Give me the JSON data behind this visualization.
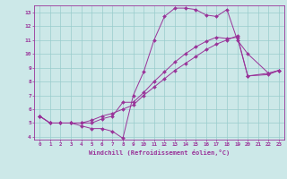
{
  "xlabel": "Windchill (Refroidissement éolien,°C)",
  "bg_color": "#cce8e8",
  "grid_color": "#99cccc",
  "line_color": "#993399",
  "xlim": [
    -0.5,
    23.5
  ],
  "ylim": [
    3.8,
    13.5
  ],
  "xticks": [
    0,
    1,
    2,
    3,
    4,
    5,
    6,
    7,
    8,
    9,
    10,
    11,
    12,
    13,
    14,
    15,
    16,
    17,
    18,
    19,
    20,
    21,
    22,
    23
  ],
  "yticks": [
    4,
    5,
    6,
    7,
    8,
    9,
    10,
    11,
    12,
    13
  ],
  "line1_x": [
    0,
    1,
    2,
    3,
    4,
    5,
    6,
    7,
    8,
    9,
    10,
    11,
    12,
    13,
    14,
    15,
    16,
    17,
    18,
    19,
    20,
    22,
    23
  ],
  "line1_y": [
    5.5,
    5.0,
    5.0,
    5.0,
    4.8,
    4.6,
    4.6,
    4.4,
    3.9,
    7.0,
    8.7,
    11.0,
    12.7,
    13.3,
    13.3,
    13.2,
    12.8,
    12.7,
    13.2,
    11.0,
    10.0,
    8.6,
    8.8
  ],
  "line2_x": [
    0,
    1,
    2,
    3,
    4,
    5,
    6,
    7,
    8,
    9,
    10,
    11,
    12,
    13,
    14,
    15,
    16,
    17,
    18,
    19,
    20,
    22,
    23
  ],
  "line2_y": [
    5.5,
    5.0,
    5.0,
    5.0,
    5.0,
    5.0,
    5.3,
    5.5,
    6.5,
    6.5,
    7.2,
    8.0,
    8.7,
    9.4,
    10.0,
    10.5,
    10.9,
    11.2,
    11.1,
    11.2,
    8.4,
    8.6,
    8.8
  ],
  "line3_x": [
    0,
    1,
    2,
    3,
    4,
    5,
    6,
    7,
    8,
    9,
    10,
    11,
    12,
    13,
    14,
    15,
    16,
    17,
    18,
    19,
    20,
    22,
    23
  ],
  "line3_y": [
    5.5,
    5.0,
    5.0,
    5.0,
    5.0,
    5.2,
    5.5,
    5.7,
    6.0,
    6.3,
    7.0,
    7.6,
    8.2,
    8.8,
    9.3,
    9.8,
    10.3,
    10.7,
    11.0,
    11.3,
    8.4,
    8.5,
    8.8
  ]
}
